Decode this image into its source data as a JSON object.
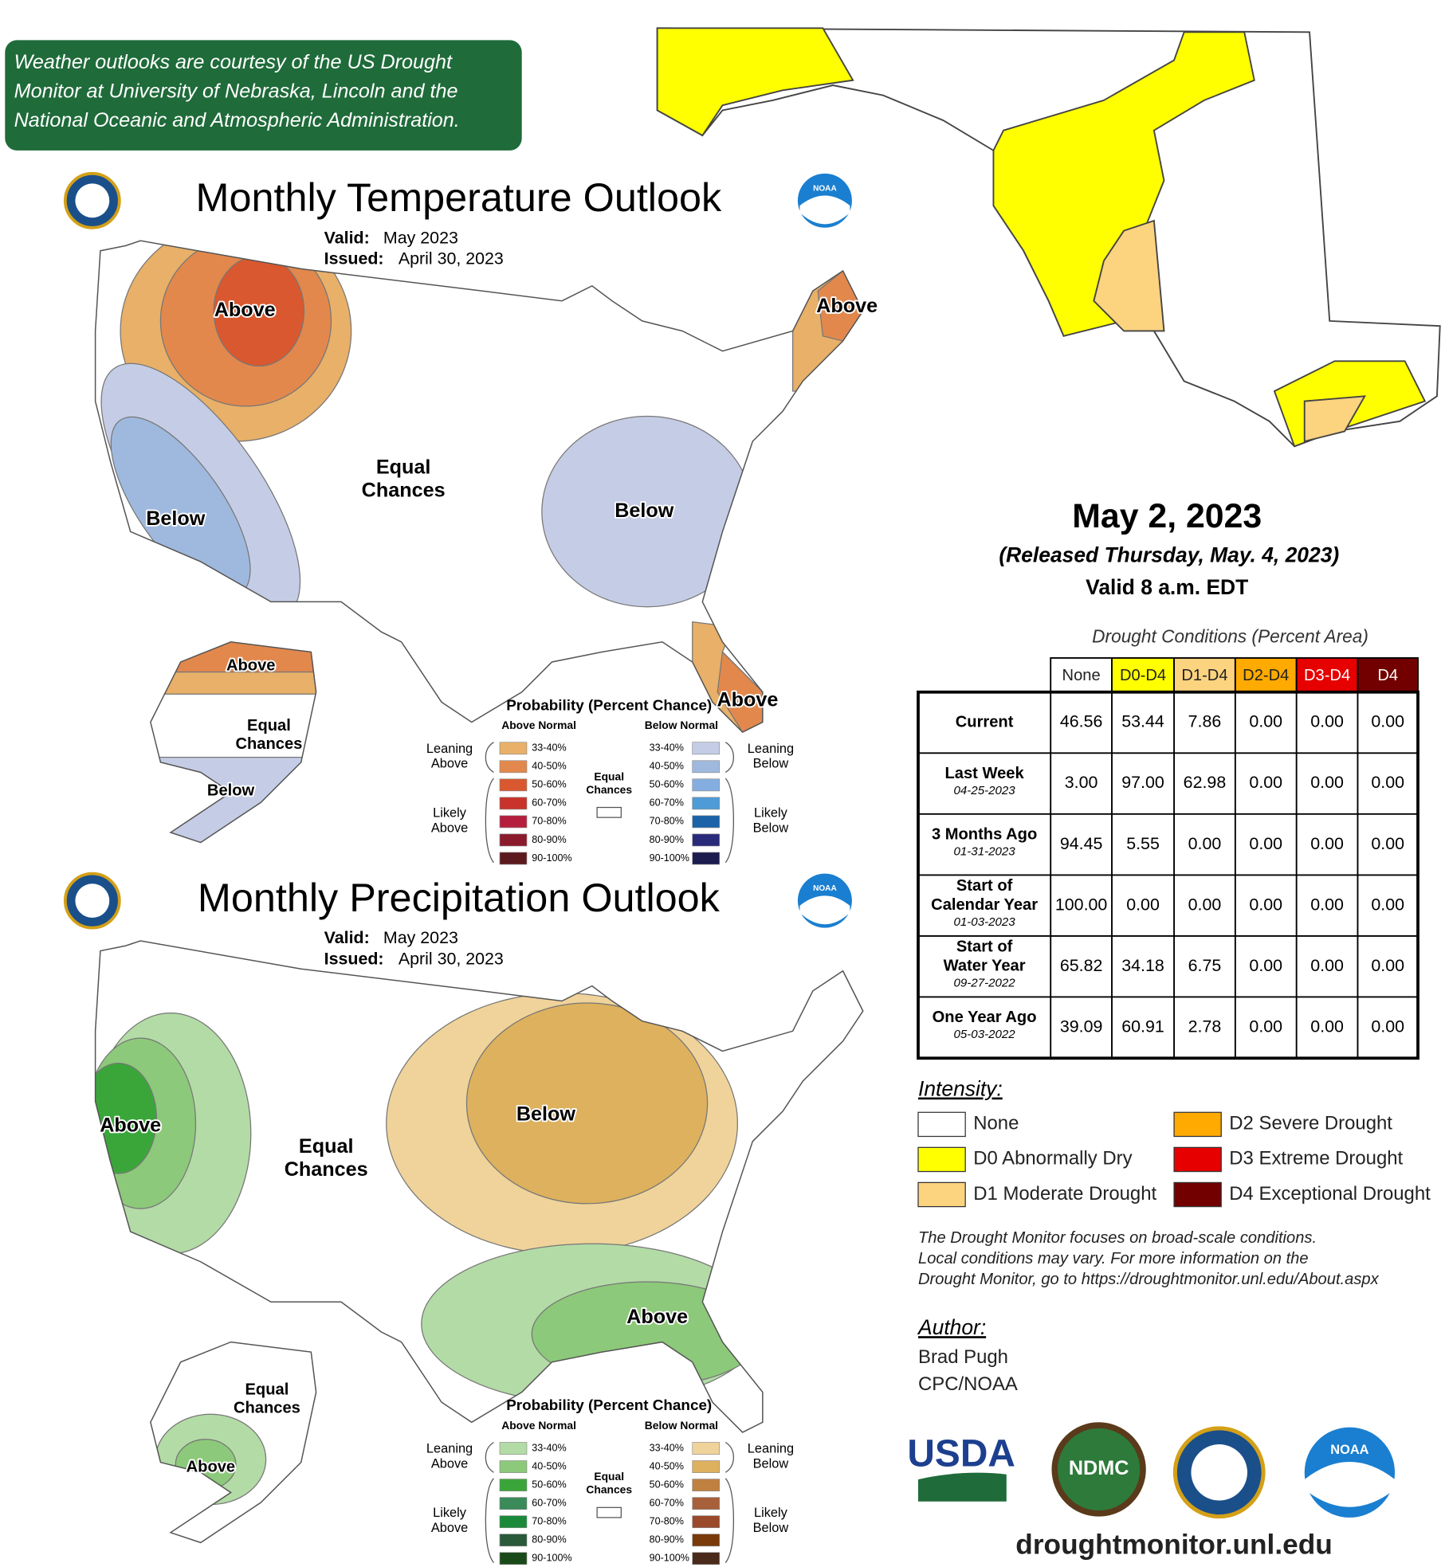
{
  "banner": [
    "Weather outlooks are courtesy of the US Drought",
    "Monitor at University of Nebraska, Lincoln and the",
    "National Oceanic and Atmospheric Administration."
  ],
  "logos": {
    "noaa": "NOAA",
    "usda": "USDA",
    "ndmc": "NDMC"
  },
  "temperature": {
    "title": "Monthly Temperature Outlook",
    "valid_label": "Valid:",
    "valid": "May 2023",
    "issued_label": "Issued:",
    "issued": "April 30, 2023",
    "map_labels": [
      "Above",
      "Above",
      [
        "Equal",
        "Chances"
      ],
      "Below",
      "Below",
      "Above",
      "Above",
      [
        "Equal",
        "Chances"
      ],
      "Below"
    ],
    "legend": {
      "title": "Probability (Percent Chance)",
      "above_header": "Above Normal",
      "below_header": "Below Normal",
      "leaning_above": [
        "Leaning",
        "Above"
      ],
      "likely_above": [
        "Likely",
        "Above"
      ],
      "equal": [
        "Equal",
        "Chances"
      ],
      "leaning_below": [
        "Leaning",
        "Below"
      ],
      "likely_below": [
        "Likely",
        "Below"
      ],
      "bins": [
        "33-40%",
        "40-50%",
        "50-60%",
        "60-70%",
        "70-80%",
        "80-90%",
        "90-100%"
      ],
      "above_colors": [
        "#e8b068",
        "#e2884d",
        "#d9582f",
        "#c8332b",
        "#b51f3d",
        "#8b1b2c",
        "#5c1a1f"
      ],
      "below_colors": [
        "#c5cde6",
        "#9fb9de",
        "#85aee0",
        "#4e9bd7",
        "#1a63a8",
        "#2a2a7a",
        "#1c1c4e"
      ]
    }
  },
  "precipitation": {
    "title": "Monthly Precipitation Outlook",
    "valid_label": "Valid:",
    "valid": "May 2023",
    "issued_label": "Issued:",
    "issued": "April 30, 2023",
    "map_labels": [
      "Above",
      [
        "Equal",
        "Chances"
      ],
      "Below",
      "Above",
      [
        "Equal",
        "Chances"
      ],
      "Above"
    ],
    "legend": {
      "title": "Probability (Percent Chance)",
      "above_header": "Above Normal",
      "below_header": "Below Normal",
      "leaning_above": [
        "Leaning",
        "Above"
      ],
      "likely_above": [
        "Likely",
        "Above"
      ],
      "equal": [
        "Equal",
        "Chances"
      ],
      "leaning_below": [
        "Leaning",
        "Below"
      ],
      "likely_below": [
        "Likely",
        "Below"
      ],
      "bins": [
        "33-40%",
        "40-50%",
        "50-60%",
        "60-70%",
        "70-80%",
        "80-90%",
        "90-100%"
      ],
      "above_colors": [
        "#b3dba6",
        "#8cc97a",
        "#3aa63a",
        "#3a8a5a",
        "#1a8a3a",
        "#2a5a3a",
        "#1a4a1a"
      ],
      "below_colors": [
        "#f0d39a",
        "#ddb15e",
        "#c08040",
        "#a8603a",
        "#9a4a2a",
        "#7a3a0a",
        "#4a2a1a"
      ]
    }
  },
  "drought": {
    "date": "May 2, 2023",
    "released": "(Released Thursday, May. 4, 2023)",
    "valid": "Valid 8 a.m. EDT",
    "table": {
      "title": "Drought Conditions (Percent Area)",
      "columns": [
        "None",
        "D0-D4",
        "D1-D4",
        "D2-D4",
        "D3-D4",
        "D4"
      ],
      "colors": [
        "#ffffff",
        "#ffff00",
        "#fcd37f",
        "#ffaa00",
        "#e60000",
        "#730000"
      ],
      "rows": [
        {
          "label": [
            "Current"
          ],
          "values": [
            "46.56",
            "53.44",
            "7.86",
            "0.00",
            "0.00",
            "0.00"
          ]
        },
        {
          "label": [
            "Last Week"
          ],
          "date": "04-25-2023",
          "values": [
            "3.00",
            "97.00",
            "62.98",
            "0.00",
            "0.00",
            "0.00"
          ]
        },
        {
          "label": [
            "3 Months Ago"
          ],
          "date": "01-31-2023",
          "values": [
            "94.45",
            "5.55",
            "0.00",
            "0.00",
            "0.00",
            "0.00"
          ]
        },
        {
          "label": [
            "Start of",
            "Calendar Year"
          ],
          "date": "01-03-2023",
          "values": [
            "100.00",
            "0.00",
            "0.00",
            "0.00",
            "0.00",
            "0.00"
          ]
        },
        {
          "label": [
            "Start of",
            "Water Year"
          ],
          "date": "09-27-2022",
          "values": [
            "65.82",
            "34.18",
            "6.75",
            "0.00",
            "0.00",
            "0.00"
          ]
        },
        {
          "label": [
            "One Year Ago"
          ],
          "date": "05-03-2022",
          "values": [
            "39.09",
            "60.91",
            "2.78",
            "0.00",
            "0.00",
            "0.00"
          ]
        }
      ]
    },
    "intensity": {
      "title": "Intensity:",
      "items": [
        "None",
        "D0 Abnormally Dry",
        "D1 Moderate Drought",
        "D2 Severe Drought",
        "D3 Extreme Drought",
        "D4 Exceptional Drought"
      ]
    },
    "note": [
      "The Drought Monitor focuses on broad-scale conditions.",
      "Local conditions may vary. For more information on the",
      "Drought Monitor, go to https://droughtmonitor.unl.edu/About.aspx"
    ],
    "author": {
      "title": "Author:",
      "lines": [
        "Brad Pugh",
        "CPC/NOAA"
      ]
    },
    "url": "droughtmonitor.unl.edu"
  }
}
